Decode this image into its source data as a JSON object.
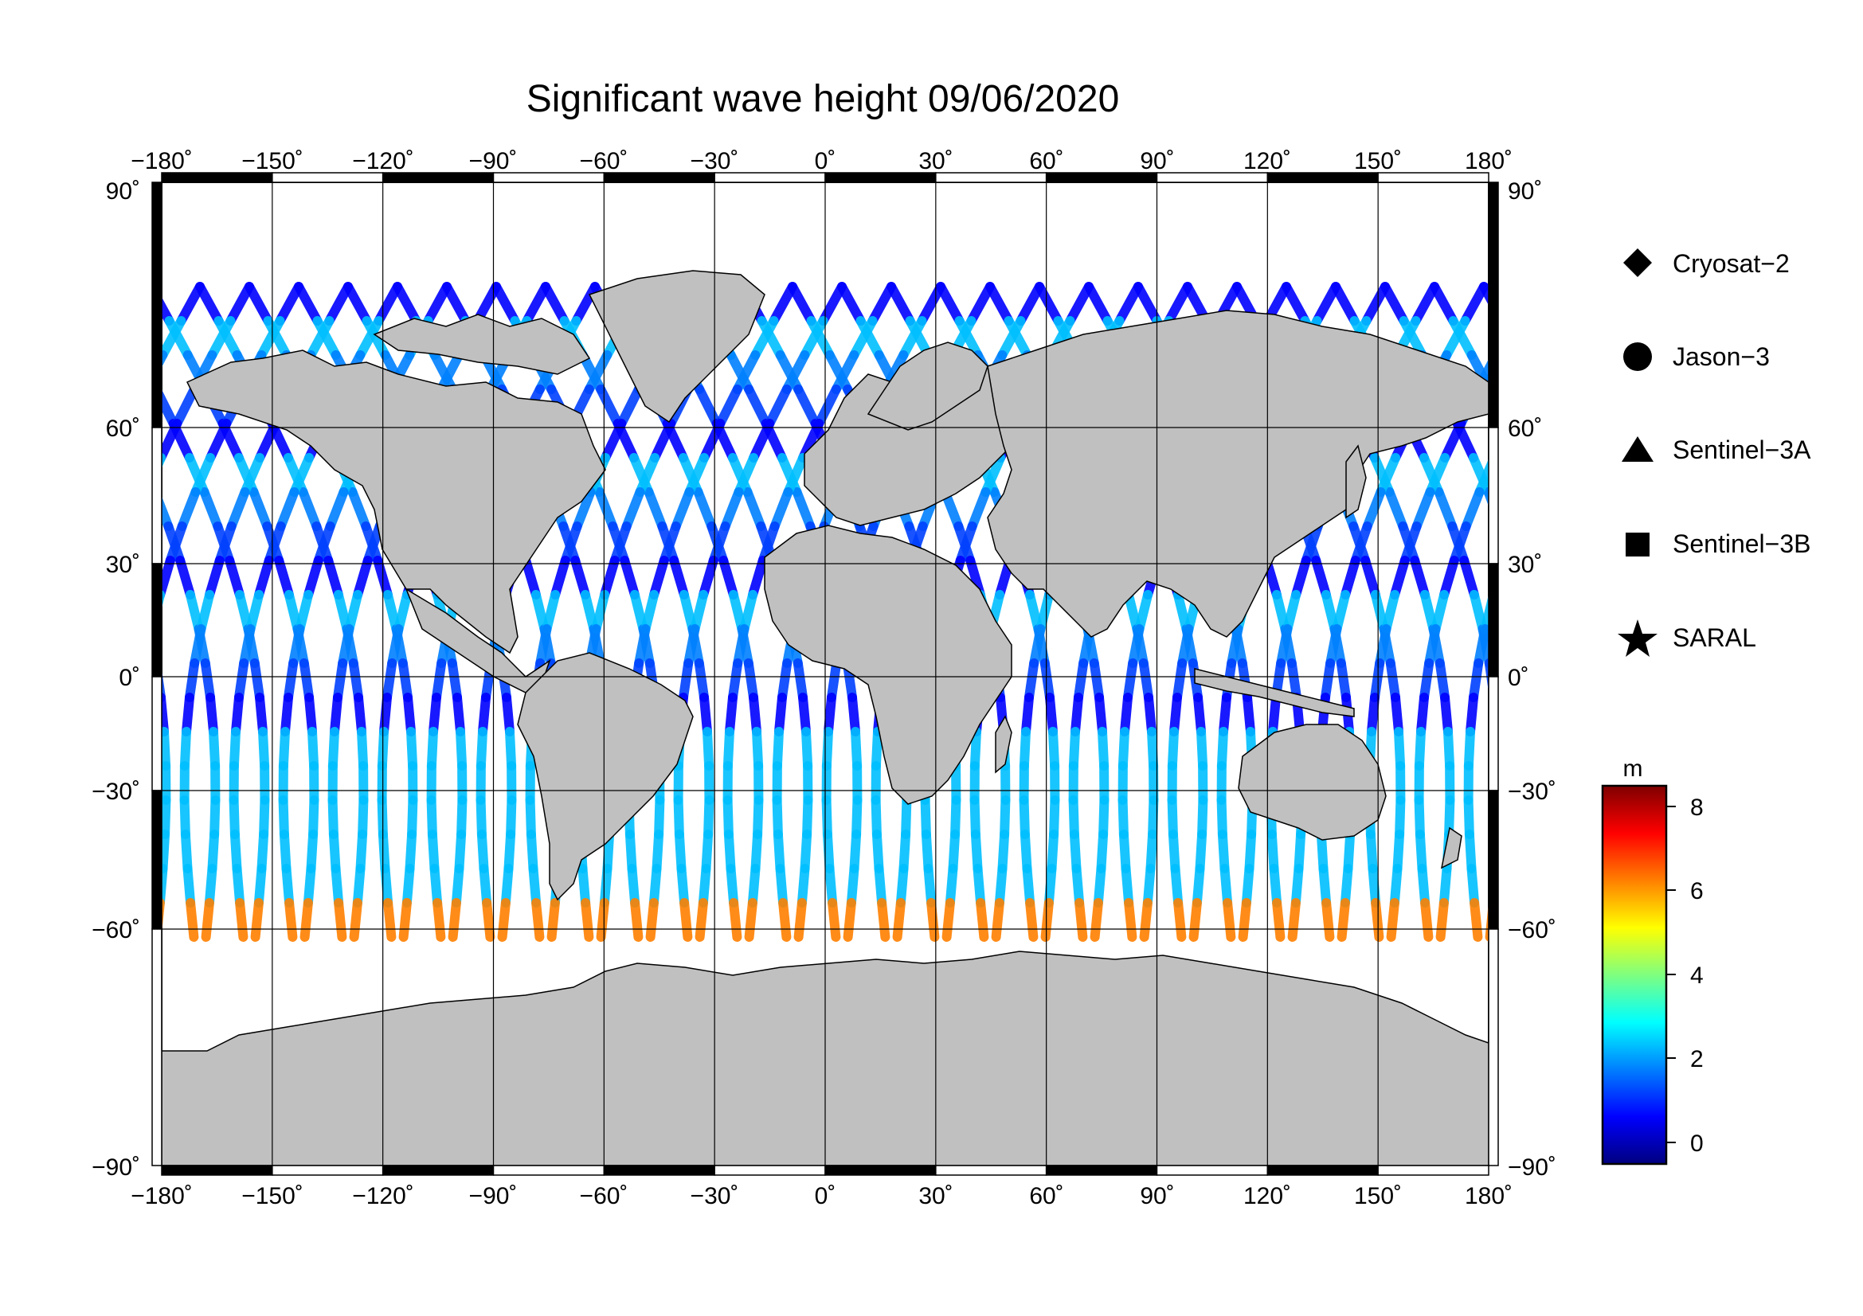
{
  "title": "Significant wave height 09/06/2020",
  "map": {
    "lon_ticks": [
      "−180˚",
      "−150˚",
      "−120˚",
      "−90˚",
      "−60˚",
      "−30˚",
      "0˚",
      "30˚",
      "60˚",
      "90˚",
      "120˚",
      "150˚",
      "180˚"
    ],
    "lat_ticks_left": [
      "90˚",
      "60˚",
      "30˚",
      "0˚",
      "−30˚",
      "−60˚",
      "−90˚"
    ],
    "lat_ticks_right": [
      "90˚",
      "60˚",
      "30˚",
      "0˚",
      "−30˚",
      "−60˚",
      "−90˚"
    ],
    "lon_range": [
      -180,
      180
    ],
    "lat_range": [
      -90,
      90
    ],
    "land_color": "#c0c0c0",
    "ocean_color": "#ffffff"
  },
  "legend": {
    "items": [
      {
        "label": "Cryosat−2",
        "icon": "diamond-icon"
      },
      {
        "label": "Jason−3",
        "icon": "circle-icon"
      },
      {
        "label": "Sentinel−3A",
        "icon": "triangle-icon"
      },
      {
        "label": "Sentinel−3B",
        "icon": "square-icon"
      },
      {
        "label": "SARAL",
        "icon": "star-icon"
      }
    ]
  },
  "colorbar": {
    "unit": "m",
    "ticks": [
      "8",
      "6",
      "4",
      "2",
      "0"
    ],
    "range": [
      -0.7,
      8.5
    ],
    "colors": [
      "#00007f",
      "#0000ff",
      "#007fff",
      "#00ffff",
      "#7fff7f",
      "#ffff00",
      "#ff7f00",
      "#ff0000",
      "#7f0000"
    ]
  }
}
